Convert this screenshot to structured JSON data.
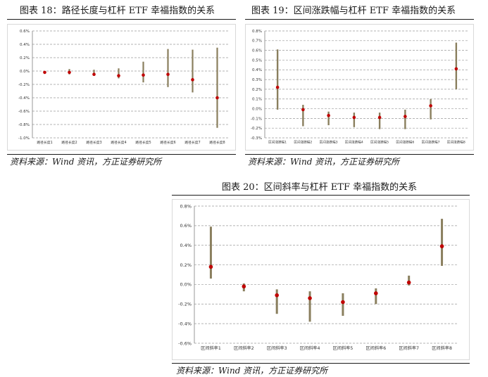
{
  "charts": [
    {
      "title": "图表 18：路径长度与杠杆 ETF 幸福指数的关系",
      "source": "资料来源：Wind 资讯，方正证券研究所",
      "chart_data": {
        "type": "bar",
        "subtype": "range-with-mean",
        "categories": [
          "路径长度1",
          "路径长度2",
          "路径长度3",
          "路径长度4",
          "路径长度5",
          "路径长度6",
          "路径长度7",
          "路径长度8"
        ],
        "series": [
          {
            "low": [
              -0.02,
              -0.05,
              -0.07,
              -0.11,
              -0.17,
              -0.24,
              -0.32,
              -0.85
            ],
            "high": [
              0.0,
              0.03,
              0.02,
              0.04,
              0.14,
              0.33,
              0.32,
              0.35
            ],
            "mean": [
              -0.02,
              -0.02,
              -0.05,
              -0.07,
              -0.06,
              -0.05,
              -0.13,
              -0.4
            ]
          }
        ],
        "ylim": [
          -1.0,
          0.6
        ],
        "yticks": [
          -1.0,
          -0.8,
          -0.6,
          -0.4,
          -0.2,
          0.0,
          0.2,
          0.4,
          0.6
        ],
        "ytick_labels": [
          "-1.0%",
          "-0.8%",
          "-0.6%",
          "-0.4%",
          "-0.2%",
          "0.0%",
          "0.2%",
          "0.4%",
          "0.6%"
        ],
        "grid": true
      }
    },
    {
      "title": "图表 19：区间涨跌幅与杠杆 ETF 幸福指数的关系",
      "source": "资料来源：Wind 资讯，方正证券研究所",
      "chart_data": {
        "type": "bar",
        "subtype": "range-with-mean",
        "categories": [
          "区间涨跌幅1",
          "区间涨跌幅2",
          "区间涨跌幅3",
          "区间涨跌幅4",
          "区间涨跌幅5",
          "区间涨跌幅6",
          "区间涨跌幅7",
          "区间涨跌幅8"
        ],
        "series": [
          {
            "low": [
              -0.01,
              -0.18,
              -0.17,
              -0.19,
              -0.21,
              -0.21,
              -0.11,
              0.2
            ],
            "high": [
              0.61,
              0.04,
              -0.03,
              -0.04,
              -0.04,
              -0.01,
              0.1,
              0.68
            ],
            "mean": [
              0.22,
              -0.01,
              -0.07,
              -0.09,
              -0.09,
              -0.08,
              0.03,
              0.41
            ]
          }
        ],
        "ylim": [
          -0.3,
          0.8
        ],
        "yticks": [
          -0.3,
          -0.2,
          -0.1,
          0.0,
          0.1,
          0.2,
          0.3,
          0.4,
          0.5,
          0.6,
          0.7,
          0.8
        ],
        "ytick_labels": [
          "-0.3%",
          "-0.2%",
          "-0.1%",
          "0.0%",
          "0.1%",
          "0.2%",
          "0.3%",
          "0.4%",
          "0.5%",
          "0.6%",
          "0.7%",
          "0.8%"
        ],
        "grid": true
      }
    },
    {
      "title": "图表 20：区间斜率与杠杆 ETF 幸福指数的关系",
      "source": "资料来源：Wind 资讯，方正证券研究所",
      "chart_data": {
        "type": "bar",
        "subtype": "range-with-mean",
        "categories": [
          "区间斜率1",
          "区间斜率2",
          "区间斜率3",
          "区间斜率4",
          "区间斜率5",
          "区间斜率6",
          "区间斜率7",
          "区间斜率8"
        ],
        "series": [
          {
            "low": [
              0.06,
              -0.07,
              -0.3,
              -0.38,
              -0.32,
              -0.2,
              -0.01,
              0.19
            ],
            "high": [
              0.59,
              0.01,
              -0.05,
              -0.07,
              -0.09,
              -0.04,
              0.09,
              0.67
            ],
            "mean": [
              0.18,
              -0.02,
              -0.11,
              -0.14,
              -0.18,
              -0.09,
              0.02,
              0.39
            ]
          }
        ],
        "ylim": [
          -0.6,
          0.8
        ],
        "yticks": [
          -0.6,
          -0.4,
          -0.2,
          0.0,
          0.2,
          0.4,
          0.6,
          0.8
        ],
        "ytick_labels": [
          "-0.6%",
          "-0.4%",
          "-0.2%",
          "0.0%",
          "0.2%",
          "0.4%",
          "0.6%",
          "0.8%"
        ],
        "grid": true
      }
    }
  ],
  "colors": {
    "bar": "#8a7f5e",
    "mean": "#c00000",
    "grid": "#9a9a9a",
    "axis": "#7f7f7f"
  }
}
